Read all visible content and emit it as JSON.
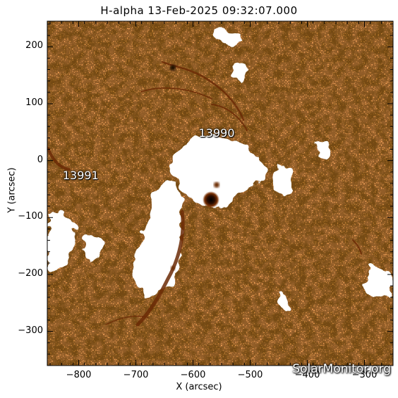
{
  "title": "H-alpha 13-Feb-2025 09:32:07.000",
  "x_axis": {
    "label": "X (arcsec)",
    "range": [
      -855,
      -250
    ],
    "ticks": [
      -800,
      -700,
      -600,
      -500,
      -400,
      -300
    ],
    "tick_labels": [
      "−800",
      "−700",
      "−600",
      "−500",
      "−400",
      "−300"
    ]
  },
  "y_axis": {
    "label": "Y (arcsec)",
    "range": [
      -360,
      245
    ],
    "ticks": [
      200,
      100,
      0,
      -100,
      -200,
      -300
    ],
    "tick_labels": [
      "200",
      "100",
      "0",
      "−100",
      "−200",
      "−300"
    ]
  },
  "active_regions": [
    {
      "label": "13990",
      "x": -590,
      "y": 48
    },
    {
      "label": "13991",
      "x": -828,
      "y": -26
    }
  ],
  "watermark": "SolarMonitor.org",
  "colors": {
    "chromosphere": "#f5a25a",
    "chromosphere_light": "#f9c48e",
    "dark_fibril": "#6b2a06",
    "plage": "#ffffff",
    "sunspot": "#1a0800"
  }
}
